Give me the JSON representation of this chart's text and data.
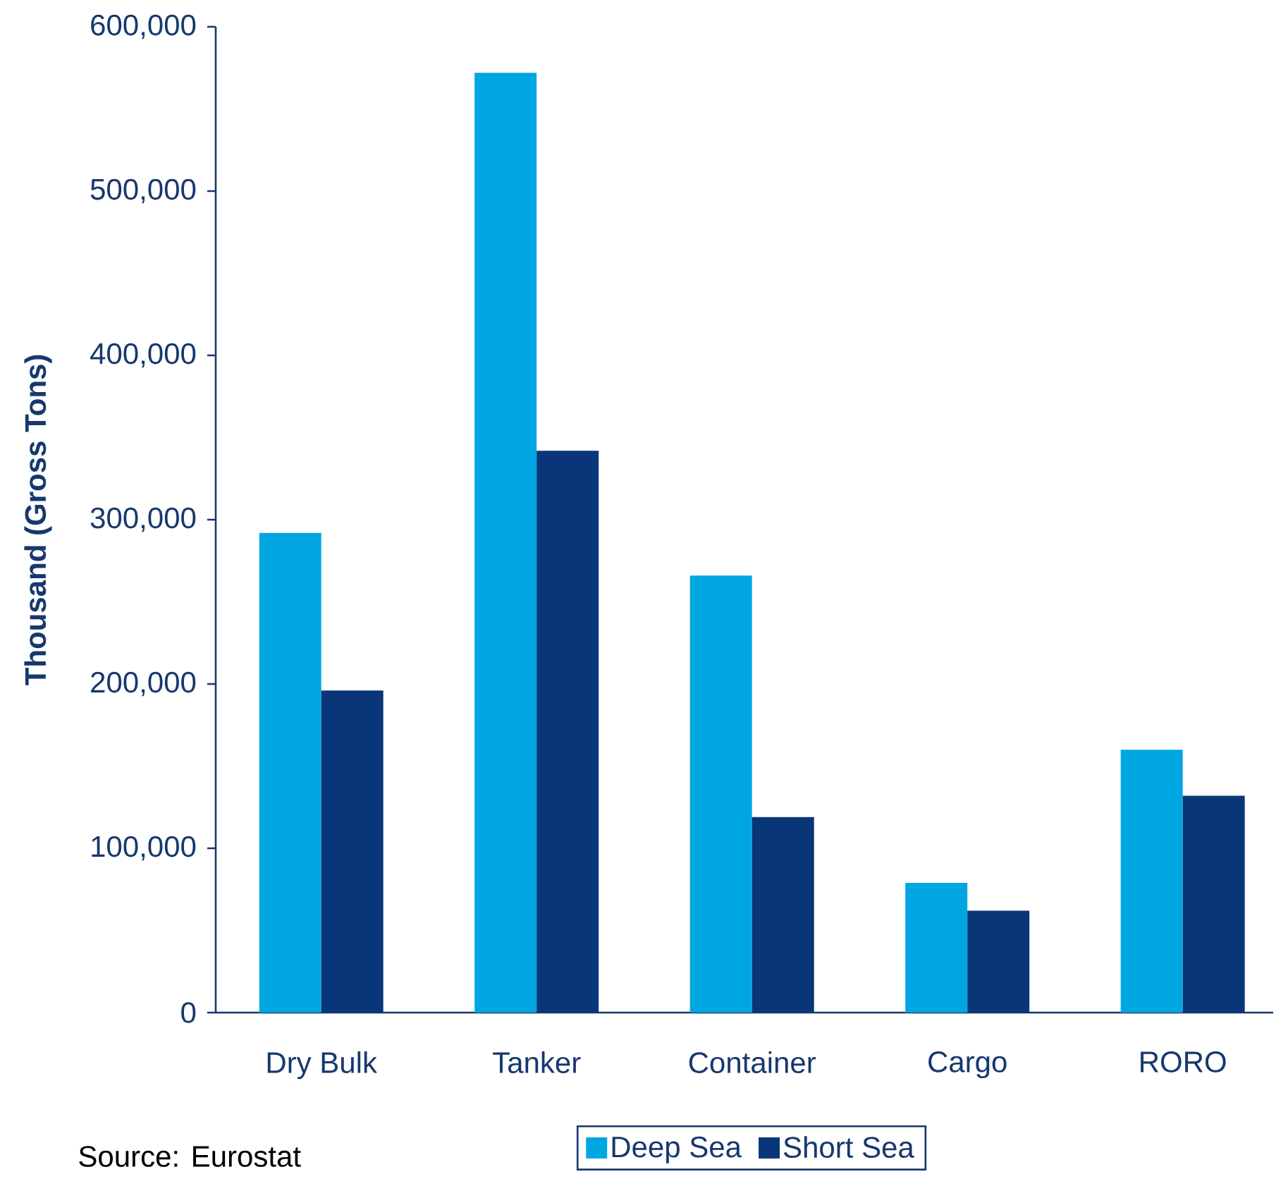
{
  "chart_data": {
    "type": "bar",
    "ylabel": "Thousand (Gross Tons)",
    "categories": [
      "Dry Bulk",
      "Tanker",
      "Container",
      "Cargo",
      "RORO"
    ],
    "series": [
      {
        "name": "Deep Sea",
        "color": "#00a6e2",
        "values": [
          292000,
          572000,
          266000,
          79000,
          160000
        ]
      },
      {
        "name": "Short Sea",
        "color": "#083678",
        "values": [
          196000,
          342000,
          119000,
          62000,
          132000
        ]
      }
    ],
    "ylim": [
      0,
      600000
    ],
    "yticks": [
      0,
      {
        "value": 100000,
        "label": "100,000"
      },
      {
        "value": 200000,
        "label": "200,000"
      },
      {
        "value": 300000,
        "label": "300,000"
      },
      {
        "value": 400000,
        "label": "400,000"
      },
      {
        "value": 500000,
        "label": "500,000"
      },
      {
        "value": 600000,
        "label": "600,000"
      }
    ],
    "legend": "bottom",
    "annotations": [
      "Source: Eurostat"
    ]
  }
}
